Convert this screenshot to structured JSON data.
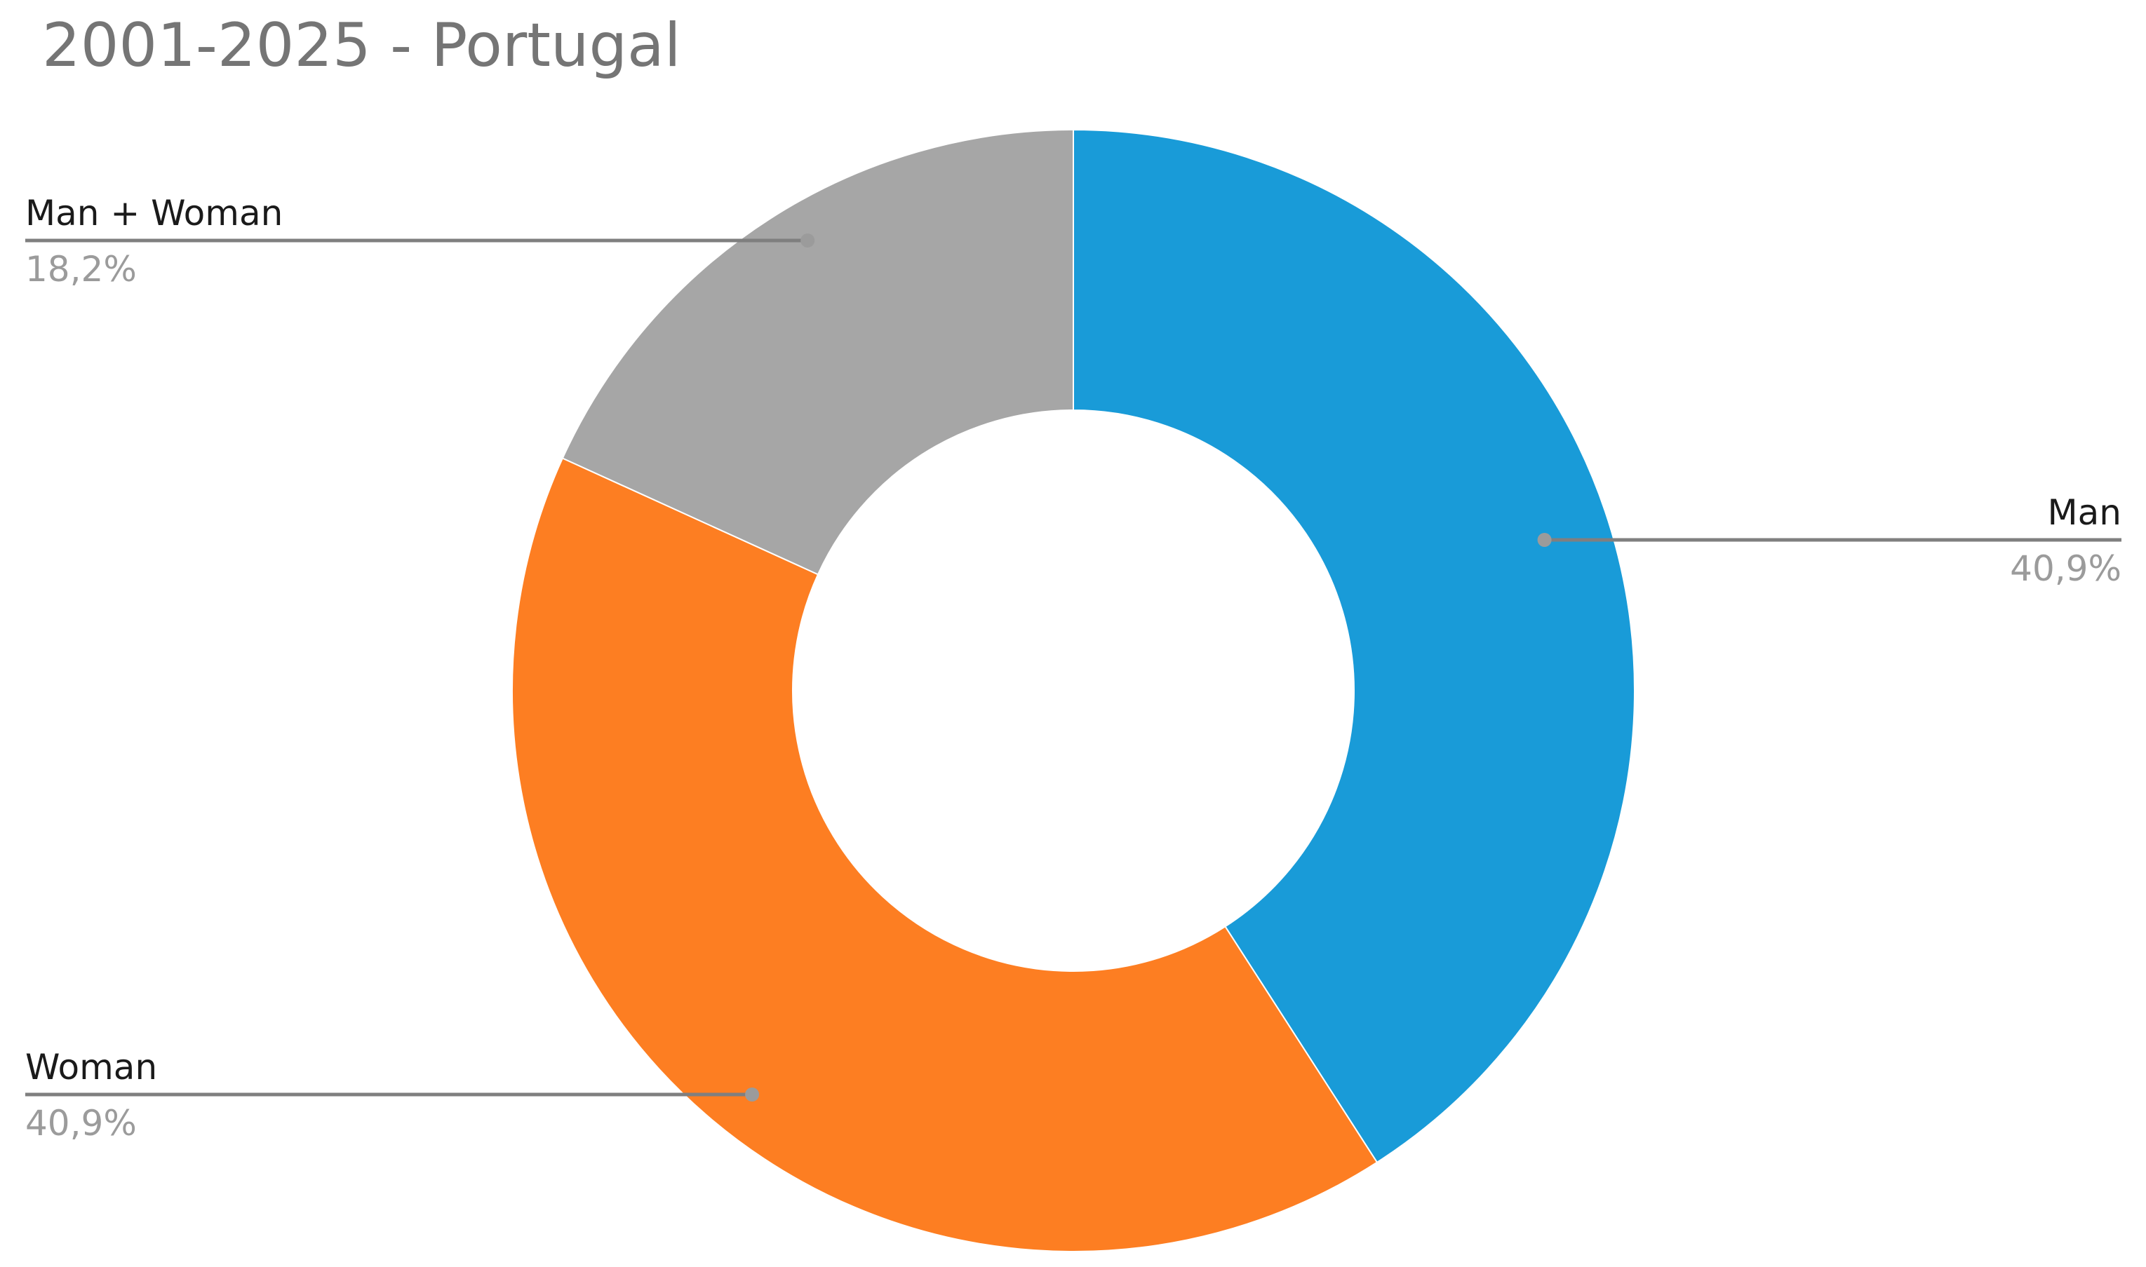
{
  "chart_data": {
    "type": "pie",
    "donut": true,
    "title": "2001-2025 - Portugal",
    "categories": [
      "Man",
      "Woman",
      "Man + Woman"
    ],
    "values": [
      40.9,
      40.9,
      18.2
    ],
    "value_labels": [
      "40,9%",
      "40,9%",
      "18,2%"
    ],
    "colors": [
      "#199BD8",
      "#FD7E22",
      "#A6A6A6"
    ],
    "start_angle_deg": 0,
    "direction": "clockwise",
    "legend": "none"
  }
}
